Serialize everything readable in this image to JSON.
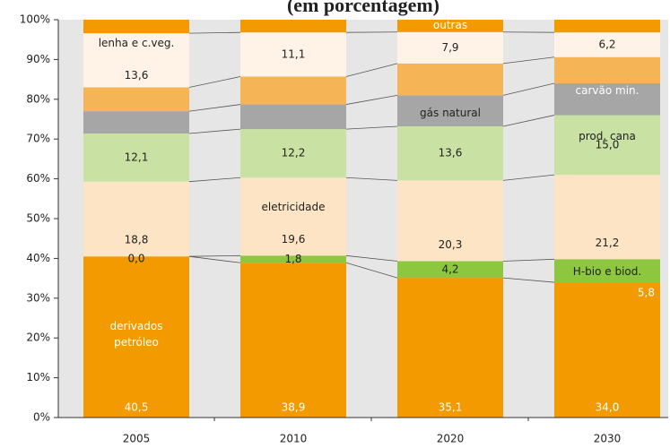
{
  "chart_data": {
    "type": "stacked_bar",
    "title": "(em porcentagem)",
    "categories": [
      "2005",
      "2010",
      "2020",
      "2030"
    ],
    "ylim": [
      0,
      100
    ],
    "yticks": [
      {
        "value": 0,
        "label": "0%"
      },
      {
        "value": 10,
        "label": "10%"
      },
      {
        "value": 20,
        "label": "20%"
      },
      {
        "value": 30,
        "label": "30%"
      },
      {
        "value": 40,
        "label": "40%"
      },
      {
        "value": 50,
        "label": "50%"
      },
      {
        "value": 60,
        "label": "60%"
      },
      {
        "value": 70,
        "label": "70%"
      },
      {
        "value": 80,
        "label": "80%"
      },
      {
        "value": 90,
        "label": "90%"
      },
      {
        "value": 100,
        "label": "100%"
      }
    ],
    "series": [
      {
        "name": "derivados petróleo",
        "color": "#f29a00",
        "values": [
          40.5,
          38.9,
          35.1,
          34.0
        ],
        "value_labels": [
          "40,5",
          "38,9",
          "35,1",
          "34,0"
        ]
      },
      {
        "name": "H-bio e biod.",
        "color": "#8dc63f",
        "values": [
          0.0,
          1.8,
          4.2,
          5.8
        ],
        "value_labels": [
          "0,0",
          "1,8",
          "4,2",
          "5,8"
        ]
      },
      {
        "name": "eletricidade",
        "color": "#fde4c4",
        "values": [
          18.8,
          19.6,
          20.3,
          21.2
        ],
        "value_labels": [
          "18,8",
          "19,6",
          "20,3",
          "21,2"
        ]
      },
      {
        "name": "prod. cana",
        "color": "#c9e1a3",
        "values": [
          12.1,
          12.2,
          13.6,
          15.0
        ],
        "value_labels": [
          "12,1",
          "12,2",
          "13,6",
          "15,0"
        ]
      },
      {
        "name": "gás natural",
        "color": "#a6a6a6",
        "values": [
          5.6,
          6.2,
          7.8,
          8.0
        ]
      },
      {
        "name": "carvão min.",
        "color": "#f5b456",
        "values": [
          6.0,
          7.0,
          8.0,
          6.6
        ]
      },
      {
        "name": "lenha e c.veg.",
        "color": "#fef3e6",
        "values": [
          13.6,
          11.1,
          7.9,
          6.2
        ],
        "value_labels": [
          "13,6",
          "11,1",
          "7,9",
          "6,2"
        ]
      },
      {
        "name": "outras",
        "color": "#f29a00",
        "values": [
          3.4,
          3.2,
          3.1,
          3.2
        ]
      }
    ]
  }
}
